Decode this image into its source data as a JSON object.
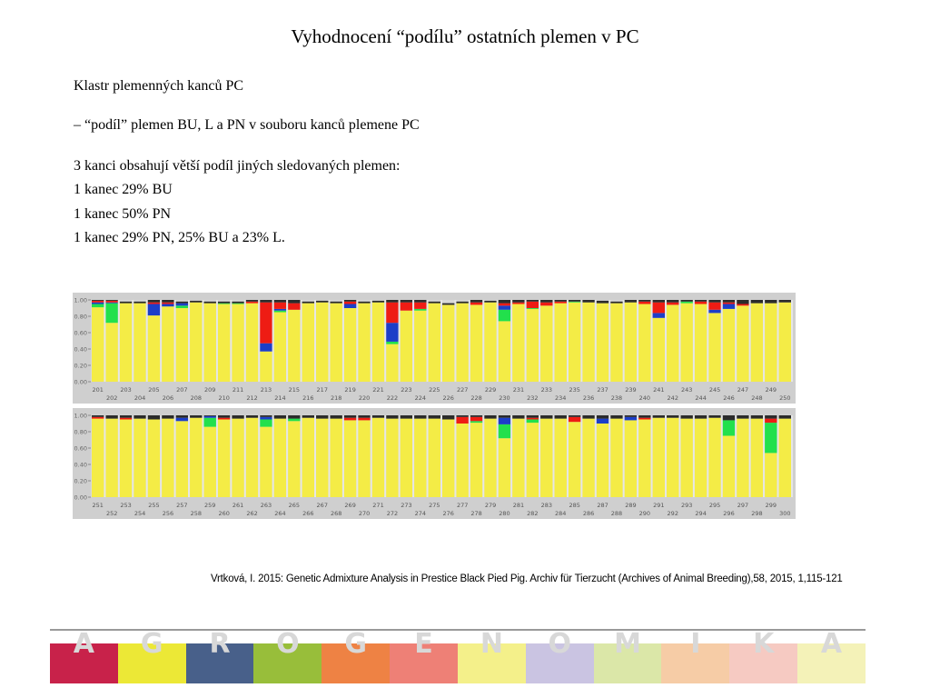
{
  "title": "Vyhodnocení “podílu” ostatních plemen v PC",
  "lines": [
    "Klastr  plemenných kanců PC",
    "– “podíl”  plemen BU, L a PN v souboru kanců plemene PC",
    "3 kanci obsahují větší podíl jiných sledovaných plemen:",
    "1 kanec 29% BU",
    "1 kanec 50% PN",
    "1 kanec 29% PN, 25% BU a 23% L."
  ],
  "citation": "Vrtková, I. 2015: Genetic Admixture Analysis in Prestice Black Pied Pig. Archiv für Tierzucht (Archives of Animal Breeding),58, 2015, 1,115-121",
  "banner": {
    "letters": [
      "A",
      "G",
      "R",
      "O",
      "G",
      "E",
      "N",
      "O",
      "M",
      "I",
      "K",
      "A"
    ],
    "tile_colors": [
      "#c8224a",
      "#ece836",
      "#48608a",
      "#98be3a",
      "#ee8244",
      "#ee8076",
      "#f4f08a",
      "#cac4e2",
      "#dbe7a8",
      "#f6cca6",
      "#f6cac2",
      "#f4f2b8"
    ]
  },
  "colors": {
    "yellow": "#f4ec46",
    "green": "#22e04c",
    "blue": "#1c3ec8",
    "red": "#ee1c14",
    "dark": "#2b2b2b",
    "frame": "#cfcfcf"
  },
  "chart_data": [
    {
      "type": "bar",
      "stacked": true,
      "title": "",
      "xlabel": "",
      "ylabel": "",
      "ylim": [
        0,
        1
      ],
      "yticks": [
        "0.00",
        "0.20",
        "0.40",
        "0.60",
        "0.80",
        "1.00"
      ],
      "categories": [
        "201",
        "202",
        "203",
        "204",
        "205",
        "206",
        "207",
        "208",
        "209",
        "210",
        "211",
        "212",
        "213",
        "214",
        "215",
        "216",
        "217",
        "218",
        "219",
        "220",
        "221",
        "222",
        "223",
        "224",
        "225",
        "226",
        "227",
        "228",
        "229",
        "230",
        "231",
        "232",
        "233",
        "234",
        "235",
        "236",
        "237",
        "238",
        "239",
        "240",
        "241",
        "242",
        "243",
        "244",
        "245",
        "246",
        "247",
        "248",
        "249",
        "250"
      ],
      "series": [
        {
          "color": "yellow",
          "values": [
            0.91,
            0.72,
            0.96,
            0.96,
            0.81,
            0.92,
            0.9,
            0.97,
            0.96,
            0.95,
            0.95,
            0.96,
            0.37,
            0.85,
            0.88,
            0.96,
            0.97,
            0.96,
            0.9,
            0.96,
            0.97,
            0.46,
            0.87,
            0.87,
            0.96,
            0.94,
            0.96,
            0.94,
            0.97,
            0.74,
            0.95,
            0.89,
            0.93,
            0.96,
            0.97,
            0.97,
            0.96,
            0.96,
            0.97,
            0.95,
            0.78,
            0.94,
            0.96,
            0.95,
            0.84,
            0.89,
            0.93,
            0.96,
            0.96,
            0.97
          ]
        },
        {
          "color": "green",
          "values": [
            0.04,
            0.24,
            0,
            0,
            0,
            0,
            0.03,
            0,
            0,
            0.01,
            0.01,
            0,
            0,
            0.02,
            0,
            0,
            0,
            0,
            0,
            0,
            0,
            0.03,
            0,
            0.02,
            0,
            0,
            0,
            0,
            0,
            0.14,
            0,
            0.01,
            0,
            0,
            0.01,
            0,
            0,
            0,
            0,
            0,
            0,
            0,
            0.02,
            0,
            0,
            0,
            0,
            0,
            0,
            0
          ]
        },
        {
          "color": "blue",
          "values": [
            0.02,
            0.01,
            0,
            0,
            0.14,
            0.03,
            0.03,
            0,
            0,
            0,
            0,
            0,
            0.1,
            0.02,
            0,
            0,
            0,
            0,
            0.05,
            0,
            0,
            0.23,
            0,
            0,
            0,
            0,
            0,
            0,
            0,
            0.05,
            0,
            0,
            0,
            0,
            0,
            0,
            0,
            0,
            0,
            0,
            0.06,
            0,
            0,
            0,
            0.04,
            0.06,
            0,
            0,
            0,
            0
          ]
        },
        {
          "color": "red",
          "values": [
            0.02,
            0.02,
            0,
            0,
            0.02,
            0.02,
            0,
            0,
            0,
            0,
            0,
            0.02,
            0.5,
            0.08,
            0.08,
            0,
            0,
            0,
            0.03,
            0,
            0,
            0.25,
            0.1,
            0.08,
            0,
            0,
            0,
            0.03,
            0,
            0.03,
            0.02,
            0.08,
            0.04,
            0.02,
            0,
            0,
            0,
            0,
            0,
            0.03,
            0.13,
            0.03,
            0,
            0.03,
            0.09,
            0.02,
            0.02,
            0,
            0,
            0
          ]
        },
        {
          "color": "dark",
          "values": [
            0.01,
            0.01,
            0.02,
            0.02,
            0.03,
            0.03,
            0.02,
            0.02,
            0.02,
            0.02,
            0.02,
            0.02,
            0.03,
            0.03,
            0.04,
            0.02,
            0.02,
            0.02,
            0.02,
            0.02,
            0.02,
            0.03,
            0.03,
            0.03,
            0.02,
            0.02,
            0.02,
            0.03,
            0.02,
            0.04,
            0.03,
            0.02,
            0.03,
            0.02,
            0.02,
            0.03,
            0.03,
            0.02,
            0.03,
            0.02,
            0.03,
            0.03,
            0.02,
            0.02,
            0.03,
            0.03,
            0.05,
            0.04,
            0.04,
            0.03
          ]
        }
      ]
    },
    {
      "type": "bar",
      "stacked": true,
      "title": "",
      "xlabel": "",
      "ylabel": "",
      "ylim": [
        0,
        1
      ],
      "yticks": [
        "0.00",
        "0.20",
        "0.40",
        "0.60",
        "0.80",
        "1.00"
      ],
      "categories": [
        "251",
        "252",
        "253",
        "254",
        "255",
        "256",
        "257",
        "258",
        "259",
        "260",
        "261",
        "262",
        "263",
        "264",
        "265",
        "266",
        "267",
        "268",
        "269",
        "270",
        "271",
        "272",
        "273",
        "274",
        "275",
        "276",
        "277",
        "278",
        "279",
        "280",
        "281",
        "282",
        "283",
        "284",
        "285",
        "286",
        "287",
        "288",
        "289",
        "290",
        "291",
        "292",
        "293",
        "294",
        "295",
        "296",
        "297",
        "298",
        "299",
        "300"
      ],
      "series": [
        {
          "color": "yellow",
          "values": [
            0.96,
            0.96,
            0.95,
            0.96,
            0.95,
            0.96,
            0.93,
            0.97,
            0.86,
            0.95,
            0.96,
            0.97,
            0.86,
            0.96,
            0.93,
            0.97,
            0.96,
            0.96,
            0.94,
            0.94,
            0.97,
            0.96,
            0.96,
            0.96,
            0.96,
            0.95,
            0.9,
            0.91,
            0.96,
            0.72,
            0.96,
            0.91,
            0.96,
            0.96,
            0.92,
            0.96,
            0.9,
            0.96,
            0.94,
            0.95,
            0.97,
            0.97,
            0.96,
            0.96,
            0.97,
            0.75,
            0.96,
            0.96,
            0.54,
            0.96
          ]
        },
        {
          "color": "green",
          "values": [
            0,
            0,
            0,
            0,
            0,
            0,
            0,
            0,
            0.11,
            0,
            0,
            0,
            0.09,
            0,
            0.03,
            0,
            0,
            0,
            0,
            0,
            0,
            0,
            0,
            0,
            0,
            0,
            0,
            0.02,
            0,
            0.17,
            0,
            0.04,
            0,
            0,
            0,
            0,
            0,
            0,
            0,
            0,
            0,
            0,
            0,
            0,
            0,
            0.19,
            0,
            0,
            0.37,
            0
          ]
        },
        {
          "color": "blue",
          "values": [
            0,
            0,
            0,
            0,
            0,
            0,
            0.04,
            0,
            0.02,
            0,
            0,
            0,
            0.03,
            0,
            0,
            0,
            0,
            0,
            0,
            0,
            0,
            0,
            0,
            0,
            0,
            0,
            0,
            0,
            0,
            0.08,
            0,
            0,
            0,
            0,
            0,
            0,
            0.06,
            0,
            0.04,
            0,
            0,
            0,
            0,
            0,
            0,
            0,
            0,
            0,
            0,
            0
          ]
        },
        {
          "color": "red",
          "values": [
            0.02,
            0,
            0.02,
            0,
            0,
            0,
            0,
            0,
            0,
            0.02,
            0,
            0,
            0,
            0,
            0,
            0,
            0,
            0,
            0.03,
            0.03,
            0,
            0,
            0,
            0,
            0,
            0,
            0.08,
            0.05,
            0,
            0,
            0,
            0.02,
            0,
            0,
            0.06,
            0,
            0,
            0,
            0,
            0.02,
            0,
            0,
            0,
            0,
            0,
            0,
            0,
            0,
            0.05,
            0
          ]
        },
        {
          "color": "dark",
          "values": [
            0.02,
            0.04,
            0.03,
            0.04,
            0.05,
            0.04,
            0.03,
            0.03,
            0.01,
            0.03,
            0.04,
            0.03,
            0.02,
            0.04,
            0.04,
            0.03,
            0.04,
            0.04,
            0.03,
            0.03,
            0.03,
            0.04,
            0.04,
            0.04,
            0.04,
            0.05,
            0.02,
            0.02,
            0.04,
            0.03,
            0.04,
            0.03,
            0.04,
            0.04,
            0.02,
            0.04,
            0.04,
            0.04,
            0.02,
            0.03,
            0.03,
            0.03,
            0.04,
            0.04,
            0.03,
            0.06,
            0.04,
            0.04,
            0.04,
            0.04
          ]
        }
      ]
    }
  ]
}
